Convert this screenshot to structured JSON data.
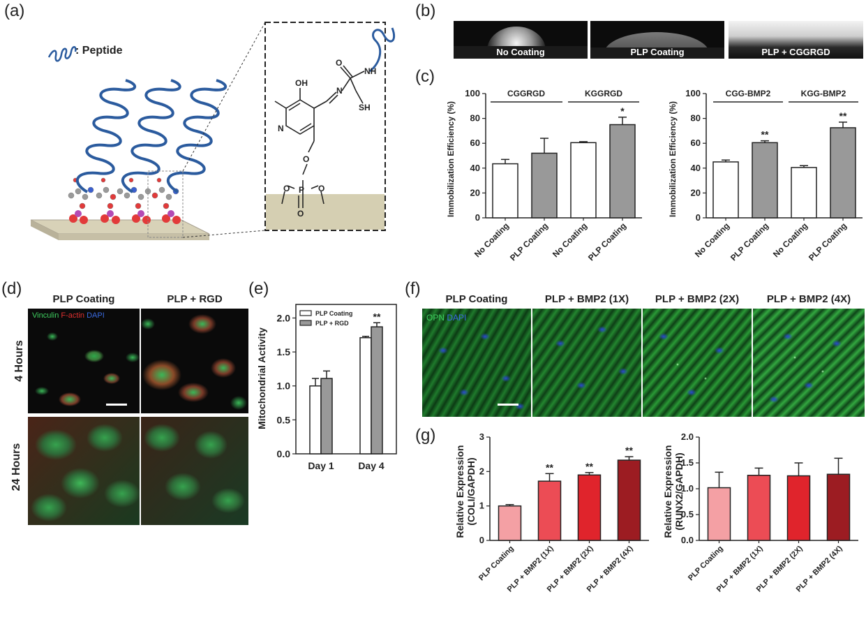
{
  "panels": {
    "a": "(a)",
    "b": "(b)",
    "c": "(c)",
    "d": "(d)",
    "e": "(e)",
    "f": "(f)",
    "g": "(g)"
  },
  "schematic": {
    "legend": ": Peptide",
    "chem": {
      "oh": "OH",
      "n_ring": "N",
      "n_imine": "N",
      "o_carbonyl": "O",
      "nh": "NH",
      "sh": "SH",
      "o_ether": "O",
      "p": "P",
      "o": "O"
    }
  },
  "contact_angle": {
    "labels": [
      "No Coating",
      "PLP Coating",
      "PLP + CGGRGD"
    ]
  },
  "chart_c1": {
    "ylabel": "Immobilization Efficiency (%)",
    "yticks": [
      "0",
      "20",
      "40",
      "60",
      "80",
      "100"
    ],
    "groups": [
      "CGGRGD",
      "KGGRGD"
    ],
    "categories": [
      "No Coating",
      "PLP Coating",
      "No Coating",
      "PLP Coating"
    ],
    "sig": [
      "",
      "",
      "",
      "*"
    ]
  },
  "chart_c2": {
    "ylabel": "Immobilization Efficiency (%)",
    "yticks": [
      "0",
      "20",
      "40",
      "60",
      "80",
      "100"
    ],
    "groups": [
      "CGG-BMP2",
      "KGG-BMP2"
    ],
    "categories": [
      "No Coating",
      "PLP Coating",
      "No Coating",
      "PLP Coating"
    ],
    "sig": [
      "",
      "**",
      "",
      "**"
    ]
  },
  "panel_d": {
    "cols": [
      "PLP Coating",
      "PLP + RGD"
    ],
    "rows": [
      "4 Hours",
      "24 Hours"
    ],
    "stain": {
      "vinculin": "Vinculin",
      "factin": "F-actin",
      "dapi": "DAPI"
    }
  },
  "chart_e": {
    "ylabel": "Mitochondrial Activity",
    "yticks": [
      "0.0",
      "0.5",
      "1.0",
      "1.5",
      "2.0"
    ],
    "categories": [
      "Day 1",
      "Day 4"
    ],
    "legend": [
      "PLP Coating",
      "PLP + RGD"
    ],
    "sig": "**"
  },
  "panel_f": {
    "cols": [
      "PLP Coating",
      "PLP + BMP2 (1X)",
      "PLP + BMP2 (2X)",
      "PLP + BMP2 (4X)"
    ],
    "stain": {
      "opn": "OPN",
      "dapi": "DAPI"
    }
  },
  "chart_g1": {
    "ylabel1": "Relative Expression",
    "ylabel2": "(COLI/GAPDH)",
    "yticks": [
      "0",
      "1",
      "2",
      "3"
    ],
    "categories": [
      "PLP Coating",
      "PLP + BMP2 (1X)",
      "PLP + BMP2 (2X)",
      "PLP + BMP2 (4X)"
    ],
    "sig": [
      "",
      "**",
      "**",
      "**"
    ]
  },
  "chart_g2": {
    "ylabel1": "Relative Expression",
    "ylabel2": "(RUNX2/GAPDH)",
    "yticks": [
      "0.0",
      "0.5",
      "1.0",
      "1.5",
      "2.0"
    ],
    "categories": [
      "PLP Coating",
      "PLP + BMP2 (1X)",
      "PLP + BMP2 (2X)",
      "PLP + BMP2 (4X)"
    ],
    "sig": [
      "",
      "",
      "",
      ""
    ]
  },
  "chart_data": [
    {
      "type": "bar",
      "categories": [
        "No Coating",
        "PLP Coating",
        "No Coating",
        "PLP Coating"
      ],
      "values": [
        43.5,
        52,
        60.5,
        75
      ],
      "errors": [
        3.5,
        12,
        0.8,
        6
      ],
      "fills": [
        "#ffffff",
        "#999999",
        "#ffffff",
        "#999999"
      ],
      "ylabel": "Immobilization Efficiency (%)",
      "ylim": [
        0,
        100
      ]
    },
    {
      "type": "bar",
      "categories": [
        "No Coating",
        "PLP Coating",
        "No Coating",
        "PLP Coating"
      ],
      "values": [
        45,
        60.5,
        40.5,
        72.5
      ],
      "errors": [
        1.5,
        1.5,
        1.5,
        4.5
      ],
      "fills": [
        "#ffffff",
        "#999999",
        "#ffffff",
        "#999999"
      ],
      "ylabel": "Immobilization Efficiency (%)",
      "ylim": [
        0,
        100
      ]
    },
    {
      "type": "bar",
      "categories": [
        "Day 1",
        "Day 4"
      ],
      "series": [
        {
          "name": "PLP Coating",
          "values": [
            1.0,
            1.71
          ],
          "errors": [
            0.11,
            0.02
          ],
          "color": "#ffffff"
        },
        {
          "name": "PLP + RGD",
          "values": [
            1.11,
            1.87
          ],
          "errors": [
            0.11,
            0.06
          ],
          "color": "#999999"
        }
      ],
      "ylabel": "Mitochondrial Activity",
      "ylim": [
        0,
        2.2
      ]
    },
    {
      "type": "bar",
      "categories": [
        "PLP Coating",
        "PLP + BMP2 (1X)",
        "PLP + BMP2 (2X)",
        "PLP + BMP2 (4X)"
      ],
      "values": [
        1.0,
        1.72,
        1.9,
        2.33
      ],
      "errors": [
        0.04,
        0.22,
        0.07,
        0.1
      ],
      "fills": [
        "#f4a0a4",
        "#ec4c55",
        "#e0242c",
        "#9c1c22"
      ],
      "ylabel": "Relative Expression (COLI/GAPDH)",
      "ylim": [
        0,
        3
      ]
    },
    {
      "type": "bar",
      "categories": [
        "PLP Coating",
        "PLP + BMP2 (1X)",
        "PLP + BMP2 (2X)",
        "PLP + BMP2 (4X)"
      ],
      "values": [
        1.02,
        1.26,
        1.25,
        1.28
      ],
      "errors": [
        0.3,
        0.14,
        0.25,
        0.31
      ],
      "fills": [
        "#f4a0a4",
        "#ec4c55",
        "#e0242c",
        "#9c1c22"
      ],
      "ylabel": "Relative Expression (RUNX2/GAPDH)",
      "ylim": [
        0,
        2
      ]
    }
  ]
}
